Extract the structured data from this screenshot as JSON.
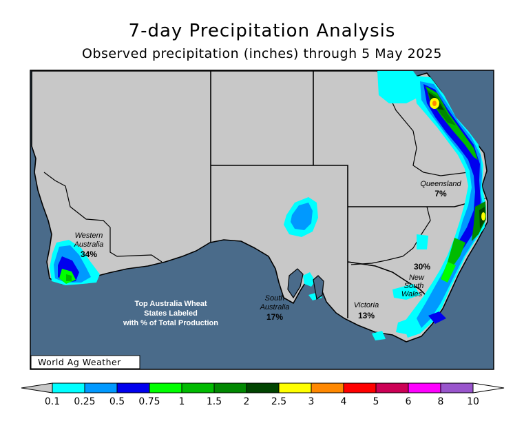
{
  "title": "7-day Precipitation Analysis",
  "subtitle": "Observed precipitation (inches) through 5 May 2025",
  "brand": "World Ag Weather",
  "note_lines": [
    "Top Australia Wheat",
    "States Labeled",
    "with % of Total Production"
  ],
  "states": [
    {
      "name_lines": [
        "Western",
        "Australia"
      ],
      "pct": "34%"
    },
    {
      "name_lines": [
        "Queensland"
      ],
      "pct": "7%"
    },
    {
      "name_lines": [
        "South",
        "Australia"
      ],
      "pct": "17%"
    },
    {
      "name_lines": [
        "New",
        "South",
        "Wales"
      ],
      "pct": "30%"
    },
    {
      "name_lines": [
        "Victoria"
      ],
      "pct": "13%"
    }
  ],
  "legend": {
    "ticks": [
      "0.1",
      "0.25",
      "0.5",
      "0.75",
      "1",
      "1.5",
      "2",
      "2.5",
      "3",
      "4",
      "5",
      "6",
      "8",
      "10"
    ],
    "colors": [
      "#00ffff",
      "#0099ff",
      "#0000ee",
      "#00ff00",
      "#00bb00",
      "#008800",
      "#004400",
      "#ffff00",
      "#ff8800",
      "#ff0000",
      "#cc0055",
      "#ff00ff",
      "#9955cc"
    ],
    "below_color": "#c8c8c8",
    "above_color": "#ffffff"
  },
  "colors": {
    "ocean": "#4a6b8a",
    "land": "#c8c8c8",
    "border": "#000000"
  }
}
